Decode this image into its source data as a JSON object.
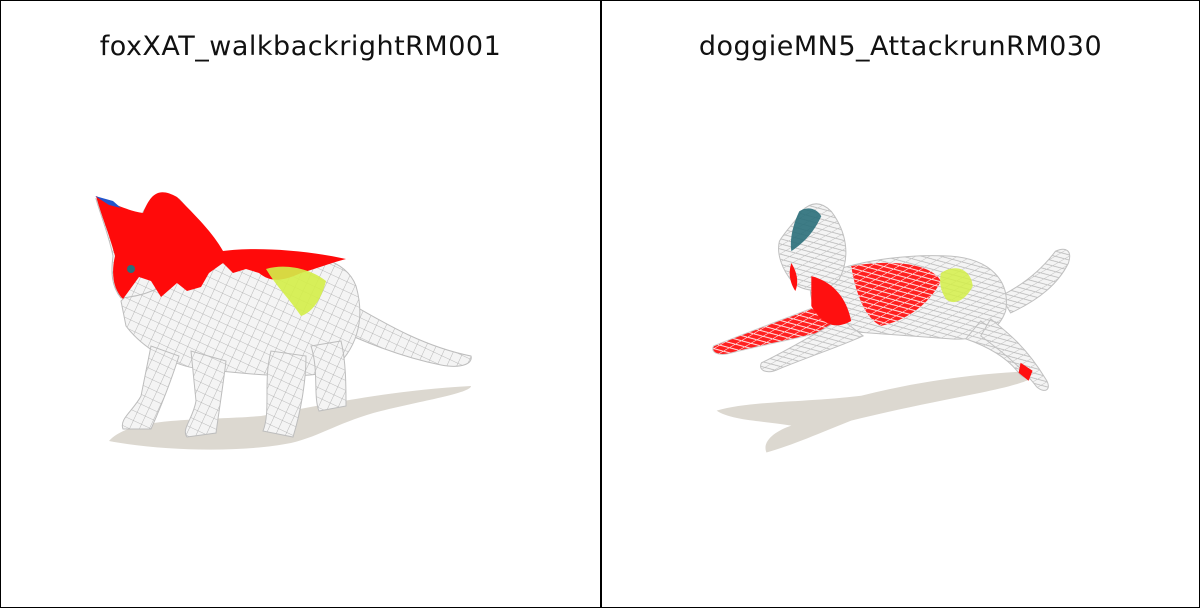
{
  "panels": [
    {
      "title": "foxXAT_walkbackrightRM001"
    },
    {
      "title": "doggieMN5_AttackrunRM030"
    }
  ],
  "colors": {
    "mesh": "#f2f2f2",
    "wire": "#9a9a9a",
    "highlight": "#ff0000",
    "accent_yellow": "#d8f04a",
    "accent_blue": "#2255cc",
    "accent_teal": "#2a6f7a",
    "shadow": "#dcd8d0"
  }
}
